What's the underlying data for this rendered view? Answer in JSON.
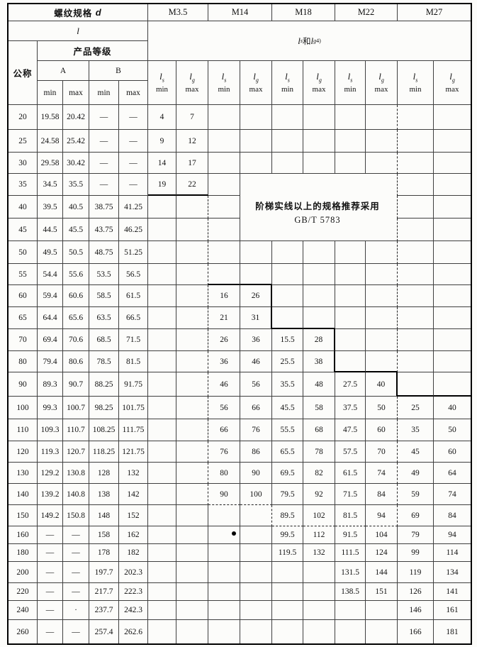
{
  "colors": {
    "ink": "#121212",
    "paper": "#fcfcfa"
  },
  "header": {
    "spec_label": "螺纹规格",
    "spec_symbol": "d",
    "sizes": [
      "M3.5",
      "M14",
      "M18",
      "M22",
      "M27"
    ],
    "l_symbol": "l",
    "ls_lg": {
      "l1": "l",
      "sub1": "s",
      "mid": "和",
      "l2": "l",
      "sub2": "g",
      "sup": "4)"
    },
    "nominal_label": "公称",
    "grade_label": "产品等级",
    "grade_a": "A",
    "grade_b": "B",
    "limits": [
      "min",
      "max",
      "min",
      "max"
    ],
    "l_pair": [
      {
        "sym": "l",
        "sub": "s",
        "limit": "min"
      },
      {
        "sym": "l",
        "sub": "g",
        "limit": "max"
      }
    ]
  },
  "note": {
    "line1": "阶梯实线以上的规格推荐采用",
    "line2": "GB/T 5783"
  },
  "artifacts": {
    "stray_dot": "small printed dot at row 160 near M14 column divider"
  },
  "table": {
    "columns": [
      "公称",
      "A min",
      "A max",
      "B min",
      "B max",
      "M3.5 ls min",
      "M3.5 lg max",
      "M14 ls min",
      "M14 lg max",
      "M18 ls min",
      "M18 lg max",
      "M22 ls min",
      "M22 lg max",
      "M27 ls min",
      "M27 lg max"
    ],
    "rows": [
      [
        "20",
        "19.58",
        "20.42",
        "—",
        "—",
        "4",
        "7",
        "",
        "",
        "",
        "",
        "",
        "",
        "",
        ""
      ],
      [
        "25",
        "24.58",
        "25.42",
        "—",
        "—",
        "9",
        "12",
        "",
        "",
        "",
        "",
        "",
        "",
        "",
        ""
      ],
      [
        "30",
        "29.58",
        "30.42",
        "—",
        "—",
        "14",
        "17",
        "",
        "",
        "",
        "",
        "",
        "",
        "",
        ""
      ],
      [
        "35",
        "34.5",
        "35.5",
        "—",
        "—",
        "19",
        "22",
        "",
        "",
        "",
        "",
        "",
        "",
        "",
        ""
      ],
      [
        "40",
        "39.5",
        "40.5",
        "38.75",
        "41.25",
        "",
        "",
        "",
        "",
        "",
        "",
        "",
        "",
        "",
        ""
      ],
      [
        "45",
        "44.5",
        "45.5",
        "43.75",
        "46.25",
        "",
        "",
        "",
        "",
        "",
        "",
        "",
        "",
        "",
        ""
      ],
      [
        "50",
        "49.5",
        "50.5",
        "48.75",
        "51.25",
        "",
        "",
        "",
        "",
        "",
        "",
        "",
        "",
        "",
        ""
      ],
      [
        "55",
        "54.4",
        "55.6",
        "53.5",
        "56.5",
        "",
        "",
        "",
        "",
        "",
        "",
        "",
        "",
        "",
        ""
      ],
      [
        "60",
        "59.4",
        "60.6",
        "58.5",
        "61.5",
        "",
        "",
        "16",
        "26",
        "",
        "",
        "",
        "",
        "",
        ""
      ],
      [
        "65",
        "64.4",
        "65.6",
        "63.5",
        "66.5",
        "",
        "",
        "21",
        "31",
        "",
        "",
        "",
        "",
        "",
        ""
      ],
      [
        "70",
        "69.4",
        "70.6",
        "68.5",
        "71.5",
        "",
        "",
        "26",
        "36",
        "15.5",
        "28",
        "",
        "",
        "",
        ""
      ],
      [
        "80",
        "79.4",
        "80.6",
        "78.5",
        "81.5",
        "",
        "",
        "36",
        "46",
        "25.5",
        "38",
        "",
        "",
        "",
        ""
      ],
      [
        "90",
        "89.3",
        "90.7",
        "88.25",
        "91.75",
        "",
        "",
        "46",
        "56",
        "35.5",
        "48",
        "27.5",
        "40",
        "",
        ""
      ],
      [
        "100",
        "99.3",
        "100.7",
        "98.25",
        "101.75",
        "",
        "",
        "56",
        "66",
        "45.5",
        "58",
        "37.5",
        "50",
        "25",
        "40"
      ],
      [
        "110",
        "109.3",
        "110.7",
        "108.25",
        "111.75",
        "",
        "",
        "66",
        "76",
        "55.5",
        "68",
        "47.5",
        "60",
        "35",
        "50"
      ],
      [
        "120",
        "119.3",
        "120.7",
        "118.25",
        "121.75",
        "",
        "",
        "76",
        "86",
        "65.5",
        "78",
        "57.5",
        "70",
        "45",
        "60"
      ],
      [
        "130",
        "129.2",
        "130.8",
        "128",
        "132",
        "",
        "",
        "80",
        "90",
        "69.5",
        "82",
        "61.5",
        "74",
        "49",
        "64"
      ],
      [
        "140",
        "139.2",
        "140.8",
        "138",
        "142",
        "",
        "",
        "90",
        "100",
        "79.5",
        "92",
        "71.5",
        "84",
        "59",
        "74"
      ],
      [
        "150",
        "149.2",
        "150.8",
        "148",
        "152",
        "",
        "",
        "",
        "",
        "89.5",
        "102",
        "81.5",
        "94",
        "69",
        "84"
      ],
      [
        "160",
        "—",
        "—",
        "158",
        "162",
        "",
        "",
        "",
        "",
        "99.5",
        "112",
        "91.5",
        "104",
        "79",
        "94"
      ],
      [
        "180",
        "—",
        "—",
        "178",
        "182",
        "",
        "",
        "",
        "",
        "119.5",
        "132",
        "111.5",
        "124",
        "99",
        "114"
      ],
      [
        "200",
        "—",
        "—",
        "197.7",
        "202.3",
        "",
        "",
        "",
        "",
        "",
        "",
        "131.5",
        "144",
        "119",
        "134"
      ],
      [
        "220",
        "—",
        "—",
        "217.7",
        "222.3",
        "",
        "",
        "",
        "",
        "",
        "",
        "138.5",
        "151",
        "126",
        "141"
      ],
      [
        "240",
        "—",
        "·",
        "237.7",
        "242.3",
        "",
        "",
        "",
        "",
        "",
        "",
        "",
        "",
        "146",
        "161"
      ],
      [
        "260",
        "—",
        "—",
        "257.4",
        "262.6",
        "",
        "",
        "",
        "",
        "",
        "",
        "",
        "",
        "166",
        "181"
      ]
    ]
  }
}
